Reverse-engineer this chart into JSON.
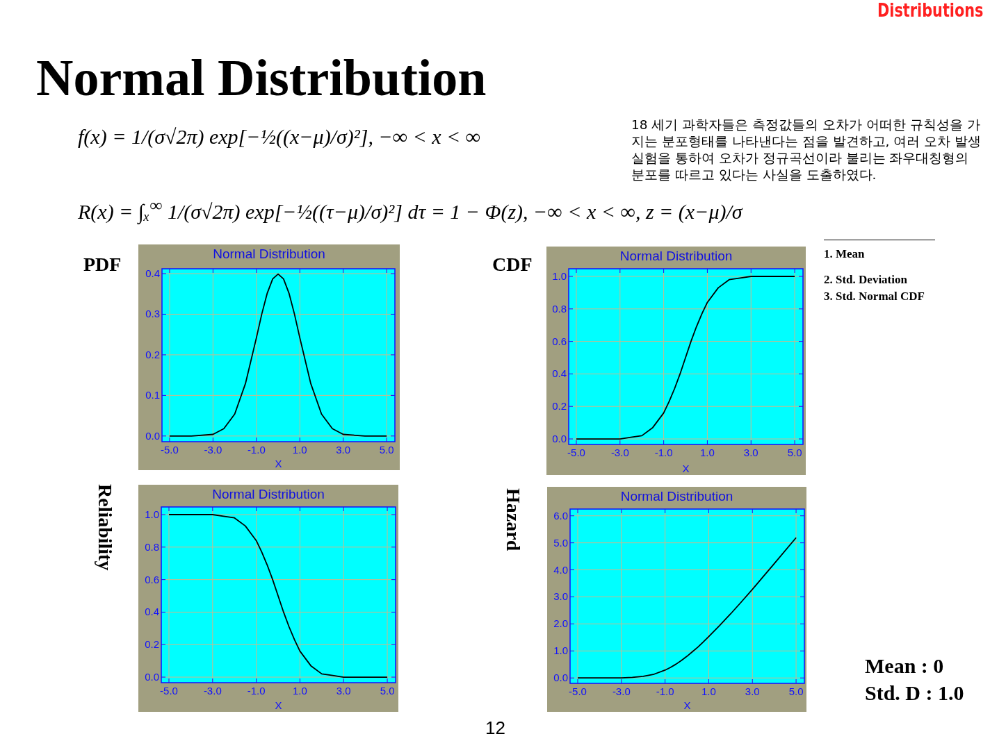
{
  "chart_data": [
    {
      "type": "line",
      "title": "Normal Distribution",
      "xlabel": "X",
      "ylabel": "PDF",
      "grid": true,
      "x": [
        -5,
        -4,
        -3,
        -2.5,
        -2,
        -1.5,
        -1,
        -0.75,
        -0.5,
        -0.25,
        0,
        0.25,
        0.5,
        0.75,
        1,
        1.5,
        2,
        2.5,
        3,
        4,
        5
      ],
      "series": [
        {
          "color": "#000000",
          "values": [
            0.0,
            0.0,
            0.004,
            0.018,
            0.054,
            0.13,
            0.242,
            0.301,
            0.352,
            0.387,
            0.399,
            0.387,
            0.352,
            0.301,
            0.242,
            0.13,
            0.054,
            0.018,
            0.004,
            0.0,
            0.0
          ]
        }
      ],
      "xlim": [
        -5.35,
        5.38
      ],
      "ylim": [
        -0.014,
        0.412
      ],
      "xticks": [
        {
          "value": -5,
          "label": "-5.0"
        },
        {
          "value": -3,
          "label": "-3.0"
        },
        {
          "value": -1,
          "label": "-1.0"
        },
        {
          "value": 1,
          "label": "1.0"
        },
        {
          "value": 3,
          "label": "3.0"
        },
        {
          "value": 5,
          "label": "5.0"
        }
      ],
      "yticks": [
        {
          "value": 0,
          "label": "0.0"
        },
        {
          "value": 0.1,
          "label": "0.1"
        },
        {
          "value": 0.2,
          "label": "0.2"
        },
        {
          "value": 0.3,
          "label": "0.3"
        },
        {
          "value": 0.4,
          "label": "0.4"
        }
      ]
    },
    {
      "type": "line",
      "title": "Normal Distribution",
      "xlabel": "X",
      "ylabel": "CDF",
      "grid": true,
      "x": [
        -5,
        -4,
        -3,
        -2.5,
        -2,
        -1.5,
        -1,
        -0.75,
        -0.5,
        -0.25,
        0,
        0.25,
        0.5,
        0.75,
        1,
        1.5,
        2,
        2.5,
        3,
        4,
        5
      ],
      "series": [
        {
          "color": "#000000",
          "values": [
            0.0,
            0.0,
            0.0,
            0.01,
            0.02,
            0.07,
            0.16,
            0.23,
            0.31,
            0.4,
            0.5,
            0.6,
            0.69,
            0.77,
            0.84,
            0.93,
            0.98,
            0.99,
            1.0,
            1.0,
            1.0
          ]
        }
      ],
      "xlim": [
        -5.35,
        5.38
      ],
      "ylim": [
        -0.034,
        1.047
      ],
      "xticks": [
        {
          "value": -5,
          "label": "-5.0"
        },
        {
          "value": -3,
          "label": "-3.0"
        },
        {
          "value": -1,
          "label": "-1.0"
        },
        {
          "value": 1,
          "label": "1.0"
        },
        {
          "value": 3,
          "label": "3.0"
        },
        {
          "value": 5,
          "label": "5.0"
        }
      ],
      "yticks": [
        {
          "value": 0,
          "label": "0.0"
        },
        {
          "value": 0.2,
          "label": "0.2"
        },
        {
          "value": 0.4,
          "label": "0.4"
        },
        {
          "value": 0.6,
          "label": "0.6"
        },
        {
          "value": 0.8,
          "label": "0.8"
        },
        {
          "value": 1,
          "label": "1.0"
        }
      ]
    },
    {
      "type": "line",
      "title": "Normal Distribution",
      "xlabel": "X",
      "ylabel": "Reliability",
      "grid": true,
      "x": [
        -5,
        -4,
        -3,
        -2.5,
        -2,
        -1.5,
        -1,
        -0.75,
        -0.5,
        -0.25,
        0,
        0.25,
        0.5,
        0.75,
        1,
        1.5,
        2,
        2.5,
        3,
        4,
        5
      ],
      "series": [
        {
          "color": "#000000",
          "values": [
            1.0,
            1.0,
            1.0,
            0.99,
            0.98,
            0.93,
            0.84,
            0.77,
            0.69,
            0.6,
            0.5,
            0.4,
            0.31,
            0.23,
            0.16,
            0.07,
            0.02,
            0.01,
            0.0,
            0.0,
            0.0
          ]
        }
      ],
      "xlim": [
        -5.35,
        5.38
      ],
      "ylim": [
        -0.034,
        1.047
      ],
      "xticks": [
        {
          "value": -5,
          "label": "-5.0"
        },
        {
          "value": -3,
          "label": "-3.0"
        },
        {
          "value": -1,
          "label": "-1.0"
        },
        {
          "value": 1,
          "label": "1.0"
        },
        {
          "value": 3,
          "label": "3.0"
        },
        {
          "value": 5,
          "label": "5.0"
        }
      ],
      "yticks": [
        {
          "value": 0,
          "label": "0.0"
        },
        {
          "value": 0.2,
          "label": "0.2"
        },
        {
          "value": 0.4,
          "label": "0.4"
        },
        {
          "value": 0.6,
          "label": "0.6"
        },
        {
          "value": 0.8,
          "label": "0.8"
        },
        {
          "value": 1,
          "label": "1.0"
        }
      ]
    },
    {
      "type": "line",
      "title": "Normal Distribution",
      "xlabel": "X",
      "ylabel": "Hazard",
      "grid": true,
      "x": [
        -5,
        -4,
        -3,
        -2.5,
        -2,
        -1.5,
        -1,
        -0.75,
        -0.5,
        -0.25,
        0,
        0.25,
        0.5,
        0.75,
        1,
        1.5,
        2,
        2.5,
        3,
        4,
        5
      ],
      "series": [
        {
          "color": "#000000",
          "values": [
            0.0,
            0.0,
            0.0,
            0.02,
            0.06,
            0.14,
            0.29,
            0.39,
            0.51,
            0.65,
            0.8,
            0.97,
            1.14,
            1.33,
            1.53,
            1.94,
            2.37,
            2.82,
            3.28,
            4.23,
            5.19
          ]
        }
      ],
      "xlim": [
        -5.35,
        5.38
      ],
      "ylim": [
        -0.2,
        6.25
      ],
      "xticks": [
        {
          "value": -5,
          "label": "-5.0"
        },
        {
          "value": -3,
          "label": "-3.0"
        },
        {
          "value": -1,
          "label": "-1.0"
        },
        {
          "value": 1,
          "label": "1.0"
        },
        {
          "value": 3,
          "label": "3.0"
        },
        {
          "value": 5,
          "label": "5.0"
        }
      ],
      "yticks": [
        {
          "value": 0,
          "label": "0.0"
        },
        {
          "value": 1,
          "label": "1.0"
        },
        {
          "value": 2,
          "label": "2.0"
        },
        {
          "value": 3,
          "label": "3.0"
        },
        {
          "value": 4,
          "label": "4.0"
        },
        {
          "value": 5,
          "label": "5.0"
        },
        {
          "value": 6,
          "label": "6.0"
        }
      ]
    },
    {
      "type": "other",
      "title": "Normal Distribution",
      "annotations": [
        "Distributions",
        "f(x) = 1/(σ√2π) exp[−½((x−μ)/σ)²],   −∞ < x < ∞",
        "R(x) = ∫ₓ$^{∞}$ 1/(σ√2π) exp[−½((τ−μ)/σ)²] dτ = 1 − Φ(z),   −∞ < x < ∞,   z = (x−μ)/σ",
        "18 세기 과학자들은 측정값들의 오차가 어떠한 규칙성을 가지는 분포형태를 나타낸다는 점을 발견하고, 여러 오차 발생 실험을 통하여 오차가 정규곡선이라 불리는 좌우대칭형의 분포를 따르고 있다는 사실을 도출하였다.",
        "1. Mean",
        "2. Std. Deviation",
        "3. Std. Normal CDF",
        "Mean : 0",
        "Std. D : 1.0",
        "12"
      ]
    }
  ]
}
